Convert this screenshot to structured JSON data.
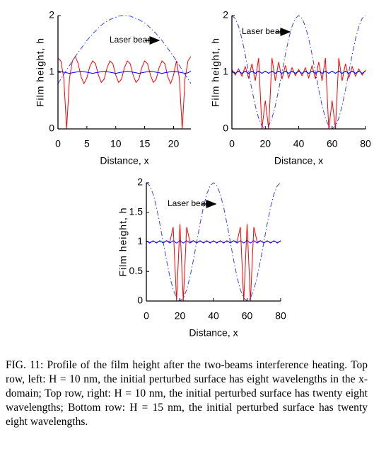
{
  "chart_data": [
    {
      "type": "line",
      "xlabel": "Distance, x",
      "ylabel": "Film height, h",
      "annotation": "Laser beam",
      "xlim": [
        0,
        23
      ],
      "xticks": [
        0,
        5,
        10,
        15,
        20
      ],
      "ylim": [
        0,
        2
      ],
      "yticks": [
        0,
        1,
        2
      ],
      "x": [
        0,
        0.5,
        1,
        1.5,
        2,
        2.5,
        3,
        3.5,
        4,
        4.5,
        5,
        5.5,
        6,
        6.5,
        7,
        7.5,
        8,
        8.5,
        9,
        9.5,
        10,
        10.5,
        11,
        11.5,
        12,
        12.5,
        13,
        13.5,
        14,
        14.5,
        15,
        15.5,
        16,
        16.5,
        17,
        17.5,
        18,
        18.5,
        19,
        19.5,
        20,
        20.5,
        21,
        21.5,
        22,
        22.5,
        23
      ],
      "series": [
        {
          "color": "#ff0000",
          "linestyle": "solid",
          "values": [
            1.25,
            1.2,
            0.9,
            0,
            0.9,
            1.2,
            1.28,
            1.15,
            0.92,
            0.8,
            0.9,
            1.1,
            1.2,
            1.15,
            0.95,
            0.82,
            0.88,
            1.08,
            1.2,
            1.15,
            0.95,
            0.82,
            0.88,
            1.08,
            1.2,
            1.15,
            0.95,
            0.82,
            0.88,
            1.08,
            1.2,
            1.15,
            0.95,
            0.82,
            0.88,
            1.08,
            1.2,
            1.15,
            0.92,
            0.8,
            0.95,
            1.2,
            0.9,
            0,
            0.9,
            1.2,
            1.28
          ]
        },
        {
          "color": "#0000ff",
          "linestyle": "solid",
          "values": [
            1.02,
            1.01,
            1,
            0.99,
            0.98,
            0.99,
            1,
            1.01,
            1.02,
            1.01,
            1,
            0.99,
            0.98,
            0.99,
            1,
            1.01,
            1.02,
            1.01,
            1,
            0.99,
            0.98,
            0.99,
            1,
            1.01,
            1.02,
            1.01,
            1,
            0.99,
            0.98,
            0.99,
            1,
            1.01,
            1.02,
            1.01,
            1,
            0.99,
            0.98,
            0.99,
            1,
            1.01,
            1.02,
            1.01,
            1,
            0.99,
            0.98,
            0.99,
            1.02
          ]
        },
        {
          "color": "#3344ee",
          "linestyle": "dashdot",
          "values": [
            0.8,
            0.88,
            0.96,
            1.04,
            1.12,
            1.2,
            1.28,
            1.35,
            1.42,
            1.49,
            1.56,
            1.62,
            1.68,
            1.73,
            1.78,
            1.83,
            1.87,
            1.9,
            1.93,
            1.95,
            1.97,
            1.99,
            2.0,
            2.0,
            2.0,
            1.99,
            1.97,
            1.95,
            1.93,
            1.9,
            1.87,
            1.83,
            1.78,
            1.73,
            1.68,
            1.62,
            1.56,
            1.49,
            1.42,
            1.35,
            1.28,
            1.2,
            1.12,
            1.04,
            0.96,
            0.88,
            0.8
          ]
        }
      ]
    },
    {
      "type": "line",
      "xlabel": "Distance, x",
      "ylabel": "Film height, h",
      "annotation": "Laser beam",
      "xlim": [
        0,
        80
      ],
      "xticks": [
        0,
        20,
        40,
        60,
        80
      ],
      "ylim": [
        0,
        2
      ],
      "yticks": [
        0,
        1,
        2
      ],
      "x": [
        0,
        2,
        4,
        6,
        8,
        10,
        12,
        14,
        16,
        18,
        20,
        22,
        24,
        26,
        28,
        30,
        32,
        34,
        36,
        38,
        40,
        42,
        44,
        46,
        48,
        50,
        52,
        54,
        56,
        58,
        60,
        62,
        64,
        66,
        68,
        70,
        72,
        74,
        76,
        78,
        80
      ],
      "series": [
        {
          "color": "#ff0000",
          "linestyle": "solid",
          "values": [
            1.05,
            0.95,
            1.06,
            0.93,
            1.1,
            0.9,
            1.15,
            0.85,
            1.25,
            0,
            0.5,
            0,
            1.25,
            0.85,
            1.18,
            0.88,
            1.12,
            0.9,
            1.08,
            0.94,
            1.05,
            0.94,
            1.08,
            0.9,
            1.12,
            0.88,
            1.18,
            0.85,
            1.25,
            0,
            0.5,
            0,
            1.25,
            0.85,
            1.15,
            0.9,
            1.1,
            0.93,
            1.06,
            0.95,
            1.04
          ]
        },
        {
          "color": "#0000ff",
          "linestyle": "solid",
          "values": [
            1.02,
            0.98,
            1.02,
            0.98,
            1.02,
            0.98,
            1.02,
            0.98,
            1.02,
            0.98,
            1.02,
            0.98,
            1.02,
            0.98,
            1.02,
            0.98,
            1.02,
            0.98,
            1.02,
            0.98,
            1.02,
            0.98,
            1.02,
            0.98,
            1.02,
            0.98,
            1.02,
            0.98,
            1.02,
            0.98,
            1.02,
            0.98,
            1.02,
            0.98,
            1.02,
            0.98,
            1.02,
            0.98,
            1.02,
            0.98,
            1.02
          ]
        },
        {
          "color": "#3344ee",
          "linestyle": "dashdot",
          "values": [
            2,
            1.95,
            1.81,
            1.59,
            1.31,
            1,
            0.69,
            0.41,
            0.19,
            0.05,
            0,
            0.05,
            0.19,
            0.41,
            0.69,
            1,
            1.31,
            1.59,
            1.81,
            1.95,
            2,
            1.95,
            1.81,
            1.59,
            1.31,
            1,
            0.69,
            0.41,
            0.19,
            0.05,
            0,
            0.05,
            0.19,
            0.41,
            0.69,
            1,
            1.31,
            1.59,
            1.81,
            1.95,
            2
          ]
        }
      ]
    },
    {
      "type": "line",
      "xlabel": "Distance, x",
      "ylabel": "Film height, h",
      "annotation": "Laser beam",
      "xlim": [
        0,
        80
      ],
      "xticks": [
        0,
        20,
        40,
        60,
        80
      ],
      "ylim": [
        0,
        2
      ],
      "yticks": [
        0,
        0.5,
        1,
        1.5,
        2
      ],
      "x": [
        0,
        2,
        4,
        6,
        8,
        10,
        12,
        14,
        16,
        18,
        20,
        22,
        24,
        26,
        28,
        30,
        32,
        34,
        36,
        38,
        40,
        42,
        44,
        46,
        48,
        50,
        52,
        54,
        56,
        58,
        60,
        62,
        64,
        66,
        68,
        70,
        72,
        74,
        76,
        78,
        80
      ],
      "series": [
        {
          "color": "#ff0000",
          "linestyle": "solid",
          "values": [
            1.01,
            0.99,
            1.01,
            0.99,
            1.01,
            0.99,
            1.02,
            1.0,
            1.25,
            0,
            1.3,
            0,
            1.25,
            1.0,
            1.02,
            0.99,
            1.01,
            0.99,
            1.01,
            0.99,
            1.01,
            0.99,
            1.01,
            0.99,
            1.01,
            0.99,
            1.02,
            1.0,
            1.25,
            0,
            1.3,
            0,
            1.25,
            1.0,
            1.02,
            0.99,
            1.01,
            0.99,
            1.01,
            0.99,
            1.01
          ]
        },
        {
          "color": "#0000ff",
          "linestyle": "solid",
          "values": [
            1.02,
            0.98,
            1.02,
            0.98,
            1.02,
            0.98,
            1.02,
            0.98,
            1.02,
            0.98,
            1.02,
            0.98,
            1.02,
            0.98,
            1.02,
            0.98,
            1.02,
            0.98,
            1.02,
            0.98,
            1.02,
            0.98,
            1.02,
            0.98,
            1.02,
            0.98,
            1.02,
            0.98,
            1.02,
            0.98,
            1.02,
            0.98,
            1.02,
            0.98,
            1.02,
            0.98,
            1.02,
            0.98,
            1.02,
            0.98,
            1.02
          ]
        },
        {
          "color": "#3344ee",
          "linestyle": "dashdot",
          "values": [
            2,
            1.95,
            1.81,
            1.59,
            1.31,
            1,
            0.69,
            0.41,
            0.19,
            0.05,
            0,
            0.05,
            0.19,
            0.41,
            0.69,
            1,
            1.31,
            1.59,
            1.81,
            1.95,
            2,
            1.95,
            1.81,
            1.59,
            1.31,
            1,
            0.69,
            0.41,
            0.19,
            0.05,
            0,
            0.05,
            0.19,
            0.41,
            0.69,
            1,
            1.31,
            1.59,
            1.81,
            1.95,
            2
          ]
        }
      ]
    }
  ],
  "caption": "FIG. 11: Profile of the film height after the two-beams interference heating. Top row, left: H = 10 nm, the initial perturbed surface has eight wavelengths in the x-domain; Top row, right: H = 10 nm, the initial perturbed surface has twenty eight wavelengths; Bottom row: H = 15 nm, the initial perturbed surface has twenty eight wavelengths."
}
